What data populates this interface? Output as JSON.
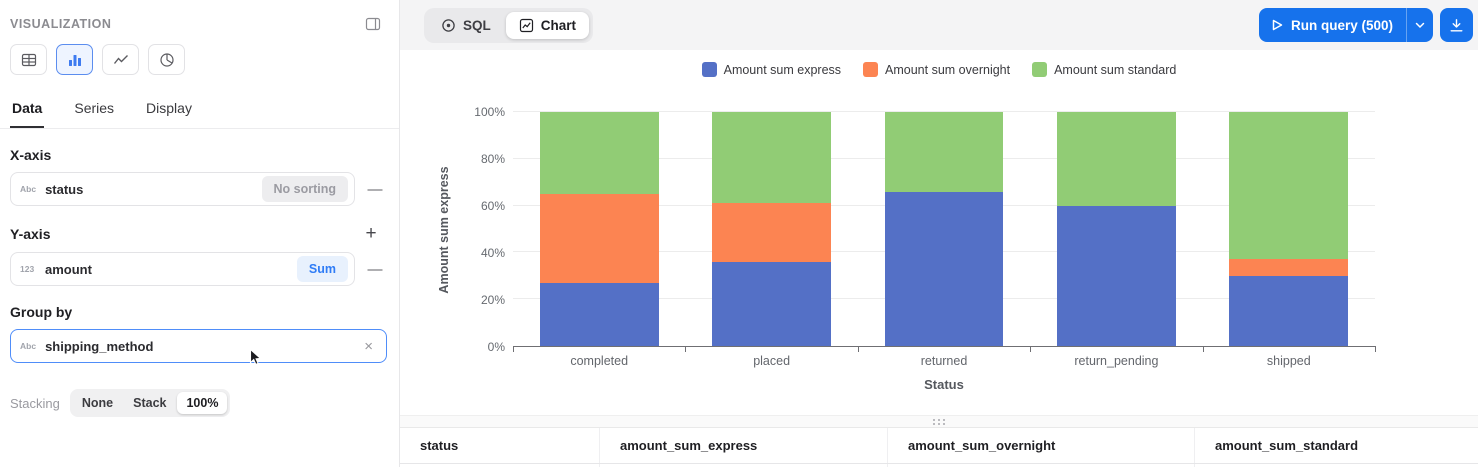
{
  "sidebar": {
    "title": "VISUALIZATION",
    "chart_types": [
      "table",
      "bar",
      "line",
      "pie"
    ],
    "active_chart_type": "bar",
    "tabs": {
      "data": "Data",
      "series": "Series",
      "display": "Display"
    },
    "active_tab": "Data",
    "x_axis": {
      "label": "X-axis",
      "field_type": "Abc",
      "field_name": "status",
      "sorting_label": "No sorting",
      "remove_label": "—"
    },
    "y_axis": {
      "label": "Y-axis",
      "add_label": "+",
      "field_type": "123",
      "field_name": "amount",
      "aggregate_label": "Sum",
      "remove_label": "—"
    },
    "group_by": {
      "label": "Group by",
      "field_type": "Abc",
      "field_name": "shipping_method",
      "clear_label": "×"
    },
    "stacking": {
      "label": "Stacking",
      "options": [
        "None",
        "Stack",
        "100%"
      ],
      "selected": "100%"
    }
  },
  "toolbar": {
    "sql_tab": "SQL",
    "chart_tab": "Chart",
    "run_label": "Run query (500)",
    "accent_color": "#1672ec"
  },
  "chart_data": {
    "type": "bar",
    "stacked": "100%",
    "categories": [
      "completed",
      "placed",
      "returned",
      "return_pending",
      "shipped"
    ],
    "series": [
      {
        "name": "Amount sum express",
        "color": "#5470c6",
        "values": [
          27,
          36,
          66,
          60,
          30
        ]
      },
      {
        "name": "Amount sum overnight",
        "color": "#fc8452",
        "values": [
          38,
          25,
          0,
          0,
          7
        ]
      },
      {
        "name": "Amount sum standard",
        "color": "#91cc75",
        "values": [
          35,
          39,
          34,
          40,
          63
        ]
      }
    ],
    "xlabel": "Status",
    "ylabel": "Amount sum express",
    "yticks": [
      "0%",
      "20%",
      "40%",
      "60%",
      "80%",
      "100%"
    ],
    "ylim": [
      0,
      100
    ],
    "legend_position": "top",
    "grid": true
  },
  "table": {
    "columns": [
      "status",
      "amount_sum_express",
      "amount_sum_overnight",
      "amount_sum_standard"
    ]
  }
}
